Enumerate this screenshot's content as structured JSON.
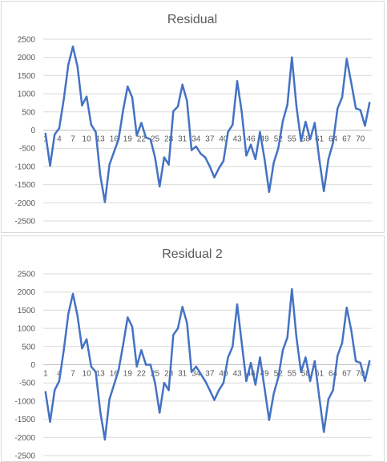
{
  "chart_data": [
    {
      "type": "line",
      "title": "Residual",
      "ylim": [
        -2500,
        2500
      ],
      "y_ticks": [
        2500,
        2000,
        1500,
        1000,
        500,
        0,
        -500,
        -1000,
        -1500,
        -2000,
        -2500
      ],
      "x_tick_labels": [
        "1",
        "4",
        "7",
        "10",
        "13",
        "16",
        "19",
        "22",
        "25",
        "28",
        "31",
        "34",
        "37",
        "40",
        "43",
        "46",
        "49",
        "52",
        "55",
        "58",
        "61",
        "64",
        "67",
        "70"
      ],
      "grid": true,
      "legend": "none",
      "line_color": "#4472c4",
      "x": [
        1,
        2,
        3,
        4,
        5,
        6,
        7,
        8,
        9,
        10,
        11,
        12,
        13,
        14,
        15,
        16,
        17,
        18,
        19,
        20,
        21,
        22,
        23,
        24,
        25,
        26,
        27,
        28,
        29,
        30,
        31,
        32,
        33,
        34,
        35,
        36,
        37,
        38,
        39,
        40,
        41,
        42,
        43,
        44,
        45,
        46,
        47,
        48,
        49,
        50,
        51,
        52,
        53,
        54,
        55,
        56,
        57,
        58,
        59,
        60,
        61,
        62,
        63,
        64,
        65,
        66,
        67,
        68,
        69,
        70,
        71,
        72
      ],
      "values": [
        -100,
        -980,
        -120,
        50,
        850,
        1800,
        2300,
        1750,
        680,
        920,
        150,
        -50,
        -1250,
        -1980,
        -950,
        -600,
        -250,
        550,
        1200,
        900,
        -150,
        200,
        -200,
        -250,
        -750,
        -1550,
        -750,
        -950,
        520,
        650,
        1250,
        800,
        -550,
        -450,
        -650,
        -750,
        -1000,
        -1300,
        -1050,
        -850,
        -50,
        150,
        1350,
        500,
        -700,
        -400,
        -800,
        -50,
        -800,
        -1700,
        -900,
        -500,
        250,
        700,
        2000,
        650,
        -300,
        230,
        -250,
        200,
        -800,
        -1680,
        -800,
        -350,
        600,
        900,
        1960,
        1300,
        600,
        550,
        120,
        750
      ]
    },
    {
      "type": "line",
      "title": "Residual 2",
      "ylim": [
        -2500,
        2500
      ],
      "y_ticks": [
        2500,
        2000,
        1500,
        1000,
        500,
        0,
        -500,
        -1000,
        -1500,
        -2000,
        -2500
      ],
      "x_tick_labels": [
        "1",
        "4",
        "7",
        "10",
        "13",
        "16",
        "19",
        "22",
        "25",
        "28",
        "31",
        "34",
        "37",
        "40",
        "43",
        "46",
        "49",
        "52",
        "55",
        "58",
        "61",
        "64",
        "67",
        "70"
      ],
      "grid": true,
      "legend": "none",
      "line_color": "#4472c4",
      "x": [
        1,
        2,
        3,
        4,
        5,
        6,
        7,
        8,
        9,
        10,
        11,
        12,
        13,
        14,
        15,
        16,
        17,
        18,
        19,
        20,
        21,
        22,
        23,
        24,
        25,
        26,
        27,
        28,
        29,
        30,
        31,
        32,
        33,
        34,
        35,
        36,
        37,
        38,
        39,
        40,
        41,
        42,
        43,
        44,
        45,
        46,
        47,
        48,
        49,
        50,
        51,
        52,
        53,
        54,
        55,
        56,
        57,
        58,
        59,
        60,
        61,
        62,
        63,
        64,
        65,
        66,
        67,
        68,
        69,
        70,
        71,
        72
      ],
      "values": [
        -750,
        -1570,
        -700,
        -450,
        400,
        1400,
        1950,
        1350,
        450,
        700,
        -50,
        -200,
        -1300,
        -2060,
        -950,
        -550,
        -150,
        550,
        1300,
        1050,
        -50,
        400,
        0,
        0,
        -500,
        -1320,
        -500,
        -700,
        820,
        1000,
        1590,
        1150,
        -200,
        -50,
        -250,
        -450,
        -700,
        -970,
        -700,
        -500,
        200,
        500,
        1660,
        600,
        -450,
        50,
        -550,
        200,
        -650,
        -1520,
        -800,
        -350,
        400,
        750,
        2080,
        750,
        -200,
        200,
        -450,
        100,
        -900,
        -1850,
        -950,
        -700,
        250,
        600,
        1570,
        950,
        100,
        50,
        -450,
        100
      ]
    }
  ]
}
